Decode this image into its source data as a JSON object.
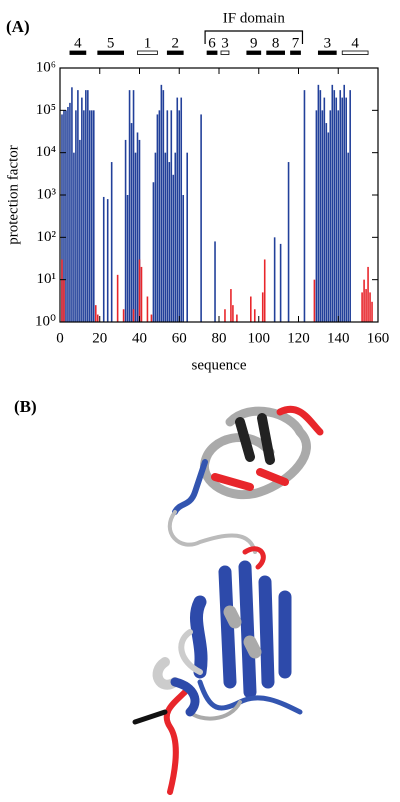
{
  "chart_data": {
    "type": "bar",
    "panel_label": "(A)",
    "xlabel": "sequence",
    "ylabel": "protection factor",
    "log_scale": true,
    "xlim": [
      0,
      160
    ],
    "xticks": [
      0,
      20,
      40,
      60,
      80,
      100,
      120,
      140,
      160
    ],
    "ylim": [
      1,
      1000000
    ],
    "yticks": [
      {
        "value": 1,
        "label": "10⁰"
      },
      {
        "value": 10,
        "label": "10¹"
      },
      {
        "value": 100,
        "label": "10²"
      },
      {
        "value": 1000,
        "label": "10³"
      },
      {
        "value": 10000,
        "label": "10⁴"
      },
      {
        "value": 100000,
        "label": "10⁵"
      },
      {
        "value": 1000000,
        "label": "10⁶"
      }
    ],
    "series": [
      {
        "color": "#22409a",
        "x": [
          1,
          2,
          3,
          4,
          5,
          6,
          7,
          8,
          9,
          10,
          11,
          12,
          13,
          14,
          15,
          16,
          17,
          22,
          24,
          26,
          33,
          34,
          35,
          36,
          37,
          38,
          39,
          40,
          47,
          48,
          49,
          50,
          51,
          52,
          53,
          54,
          55,
          56,
          57,
          58,
          59,
          60,
          61,
          62,
          64,
          71,
          78,
          108,
          111,
          115,
          123,
          129,
          130,
          131,
          132,
          133,
          134,
          135,
          136,
          137,
          138,
          139,
          140,
          141,
          142,
          143,
          144,
          145,
          146
        ],
        "values": [
          80000,
          100000,
          100000,
          120000,
          150000,
          350000,
          10000,
          100000,
          300000,
          20000,
          200000,
          100000,
          300000,
          300000,
          100000,
          100000,
          100000,
          900,
          800,
          6000,
          20000,
          1000,
          300000,
          50000,
          300000,
          10000,
          30000,
          20000,
          2000,
          10000,
          80000,
          100000,
          400000,
          300000,
          10000,
          100000,
          6000,
          100000,
          3000,
          10000,
          200000,
          100000,
          200000,
          1000,
          10000,
          80000,
          80,
          100,
          70,
          6000,
          300000,
          100000,
          400000,
          300000,
          100000,
          200000,
          50000,
          30000,
          100000,
          400000,
          300000,
          200000,
          100000,
          300000,
          200000,
          400000,
          200000,
          10000,
          300000
        ]
      },
      {
        "color": "#e8262b",
        "x": [
          1,
          2,
          18,
          19,
          29,
          32,
          37,
          40,
          41,
          44,
          46,
          83,
          86,
          87,
          89,
          96,
          98,
          102,
          103,
          128,
          152,
          153,
          154,
          155,
          156,
          157
        ],
        "values": [
          30,
          10,
          2.5,
          1.5,
          13,
          2,
          2,
          30,
          20,
          4,
          1.5,
          2,
          6,
          2.5,
          1.5,
          4,
          2,
          5,
          30,
          10,
          5,
          10,
          6,
          20,
          5,
          3
        ]
      }
    ],
    "domain_bracket": {
      "label": "IF domain",
      "start": 73,
      "end": 122
    },
    "segments": [
      {
        "label": "4",
        "start": 5,
        "end": 13,
        "style": "filled"
      },
      {
        "label": "5",
        "start": 19,
        "end": 32,
        "style": "filled"
      },
      {
        "label": "1",
        "start": 39,
        "end": 49,
        "style": "open"
      },
      {
        "label": "2",
        "start": 54,
        "end": 62,
        "style": "filled"
      },
      {
        "label": "6",
        "start": 74,
        "end": 79,
        "style": "filled"
      },
      {
        "label": "3",
        "start": 81,
        "end": 85,
        "style": "open"
      },
      {
        "label": "9",
        "start": 94,
        "end": 101,
        "style": "filled"
      },
      {
        "label": "8",
        "start": 104,
        "end": 113,
        "style": "filled"
      },
      {
        "label": "7",
        "start": 116,
        "end": 121,
        "style": "filled"
      },
      {
        "label": "3",
        "start": 130,
        "end": 139,
        "style": "filled"
      },
      {
        "label": "4",
        "start": 142,
        "end": 155,
        "style": "open"
      }
    ]
  },
  "panel_b": {
    "label": "(B)"
  }
}
